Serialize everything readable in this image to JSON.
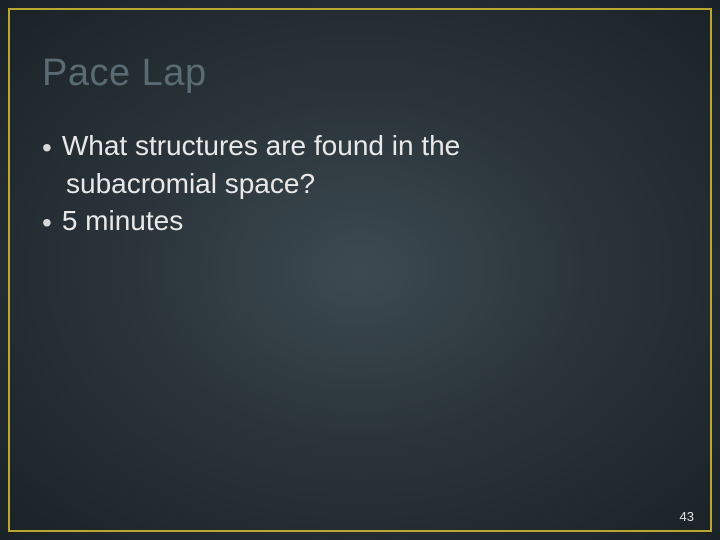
{
  "slide": {
    "title": "Pace Lap",
    "bullets": [
      {
        "line1": "What structures are found in the",
        "line2": "subacromial space?"
      },
      {
        "line1": "5 minutes",
        "line2": null
      }
    ],
    "pageNumber": "43"
  },
  "styles": {
    "border_color": "#b8a832",
    "title_color": "#5a6b73",
    "bullet_color": "#d8d8d8",
    "text_color": "#e8e8e8",
    "pagenum_color": "#e0e0e0",
    "title_fontsize": 38,
    "body_fontsize": 28,
    "pagenum_fontsize": 13,
    "background_radial": {
      "center": "#3d4a52",
      "mid": "#2a343a",
      "edge": "#1a2226"
    }
  }
}
